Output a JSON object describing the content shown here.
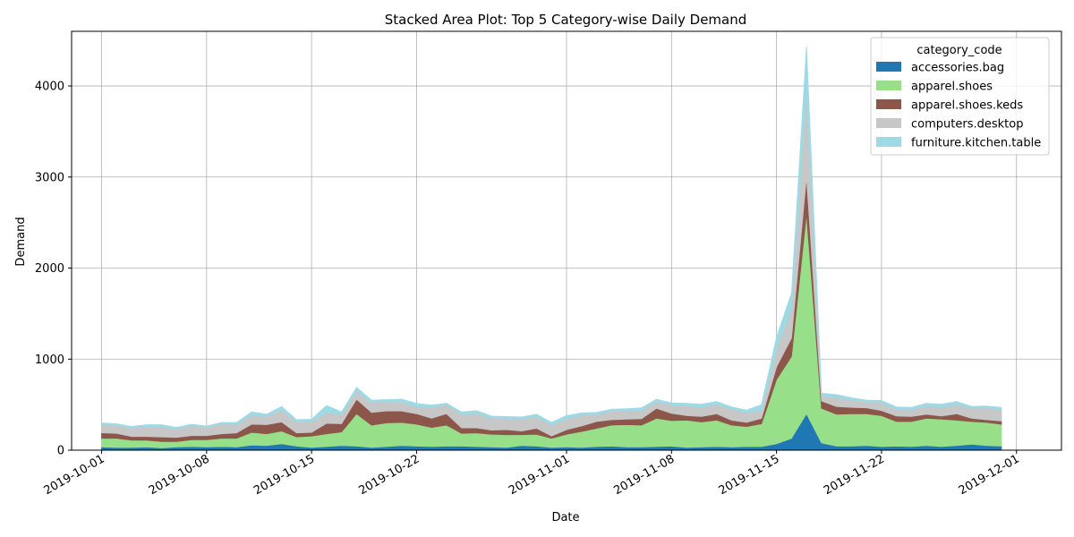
{
  "chart_data": {
    "type": "area",
    "title": "Stacked Area Plot: Top 5 Category-wise Daily Demand",
    "xlabel": "Date",
    "ylabel": "Demand",
    "ylim": [
      0,
      4600
    ],
    "x_range": [
      "2019-09-29",
      "2019-12-04"
    ],
    "y_ticks": [
      0,
      1000,
      2000,
      3000,
      4000
    ],
    "x_ticks": [
      "2019-10-01",
      "2019-10-08",
      "2019-10-15",
      "2019-10-22",
      "2019-11-01",
      "2019-11-08",
      "2019-11-15",
      "2019-11-22",
      "2019-12-01"
    ],
    "grid": true,
    "legend": {
      "title": "category_code",
      "placement": "top-right"
    },
    "x": [
      "2019-10-01",
      "2019-10-02",
      "2019-10-03",
      "2019-10-04",
      "2019-10-05",
      "2019-10-06",
      "2019-10-07",
      "2019-10-08",
      "2019-10-09",
      "2019-10-10",
      "2019-10-11",
      "2019-10-12",
      "2019-10-13",
      "2019-10-14",
      "2019-10-15",
      "2019-10-16",
      "2019-10-17",
      "2019-10-18",
      "2019-10-19",
      "2019-10-20",
      "2019-10-21",
      "2019-10-22",
      "2019-10-23",
      "2019-10-24",
      "2019-10-25",
      "2019-10-26",
      "2019-10-27",
      "2019-10-28",
      "2019-10-29",
      "2019-10-30",
      "2019-10-31",
      "2019-11-01",
      "2019-11-02",
      "2019-11-03",
      "2019-11-04",
      "2019-11-05",
      "2019-11-06",
      "2019-11-07",
      "2019-11-08",
      "2019-11-09",
      "2019-11-10",
      "2019-11-11",
      "2019-11-12",
      "2019-11-13",
      "2019-11-14",
      "2019-11-15",
      "2019-11-16",
      "2019-11-17",
      "2019-11-18",
      "2019-11-19",
      "2019-11-20",
      "2019-11-21",
      "2019-11-22",
      "2019-11-23",
      "2019-11-24",
      "2019-11-25",
      "2019-11-26",
      "2019-11-27",
      "2019-11-28",
      "2019-11-29",
      "2019-11-30"
    ],
    "series": [
      {
        "name": "accessories.bag",
        "color": "#1f77b4",
        "values": [
          35,
          30,
          30,
          35,
          25,
          35,
          40,
          35,
          40,
          35,
          55,
          50,
          70,
          45,
          30,
          40,
          50,
          45,
          30,
          40,
          50,
          45,
          40,
          45,
          45,
          40,
          35,
          30,
          50,
          45,
          30,
          35,
          30,
          40,
          45,
          35,
          35,
          40,
          45,
          30,
          35,
          40,
          35,
          40,
          40,
          70,
          130,
          400,
          80,
          45,
          45,
          50,
          40,
          45,
          40,
          50,
          40,
          50,
          65,
          50,
          45
        ]
      },
      {
        "name": "apparel.shoes",
        "color": "#98df8a",
        "values": [
          95,
          100,
          80,
          75,
          70,
          60,
          75,
          80,
          90,
          95,
          140,
          130,
          140,
          100,
          125,
          140,
          150,
          355,
          245,
          260,
          255,
          240,
          210,
          230,
          140,
          150,
          140,
          140,
          120,
          130,
          100,
          140,
          175,
          200,
          230,
          245,
          240,
          310,
          280,
          300,
          275,
          290,
          240,
          220,
          250,
          705,
          900,
          2200,
          380,
          350,
          355,
          350,
          340,
          270,
          275,
          300,
          300,
          280,
          250,
          255,
          240
        ]
      },
      {
        "name": "apparel.shoes.keds",
        "color": "#8c564b",
        "values": [
          60,
          55,
          40,
          40,
          50,
          45,
          45,
          45,
          50,
          60,
          90,
          100,
          100,
          45,
          40,
          115,
          90,
          160,
          140,
          130,
          125,
          115,
          100,
          125,
          60,
          55,
          45,
          55,
          40,
          65,
          25,
          50,
          60,
          75,
          60,
          60,
          70,
          110,
          80,
          50,
          60,
          70,
          55,
          45,
          60,
          140,
          200,
          400,
          80,
          85,
          70,
          65,
          55,
          60,
          55,
          45,
          35,
          70,
          35,
          30,
          35
        ]
      },
      {
        "name": "computers.desktop",
        "color": "#c7c7c7",
        "values": [
          90,
          90,
          95,
          105,
          110,
          90,
          110,
          90,
          110,
          95,
          100,
          90,
          130,
          120,
          120,
          120,
          100,
          90,
          110,
          100,
          100,
          80,
          120,
          100,
          150,
          160,
          130,
          120,
          130,
          130,
          120,
          120,
          120,
          80,
          90,
          90,
          90,
          75,
          90,
          110,
          100,
          110,
          120,
          110,
          90,
          200,
          330,
          950,
          60,
          100,
          80,
          65,
          90,
          70,
          75,
          90,
          100,
          105,
          110,
          130,
          120
        ]
      },
      {
        "name": "furniture.kitchen.table",
        "color": "#9edae5",
        "values": [
          20,
          15,
          15,
          25,
          25,
          20,
          15,
          15,
          15,
          20,
          35,
          25,
          40,
          25,
          25,
          75,
          30,
          40,
          25,
          25,
          30,
          35,
          25,
          15,
          25,
          30,
          25,
          25,
          25,
          25,
          30,
          35,
          25,
          20,
          25,
          25,
          30,
          25,
          25,
          25,
          35,
          25,
          25,
          25,
          60,
          125,
          165,
          490,
          25,
          30,
          25,
          20,
          20,
          30,
          25,
          30,
          30,
          30,
          20,
          20,
          30
        ]
      }
    ]
  }
}
